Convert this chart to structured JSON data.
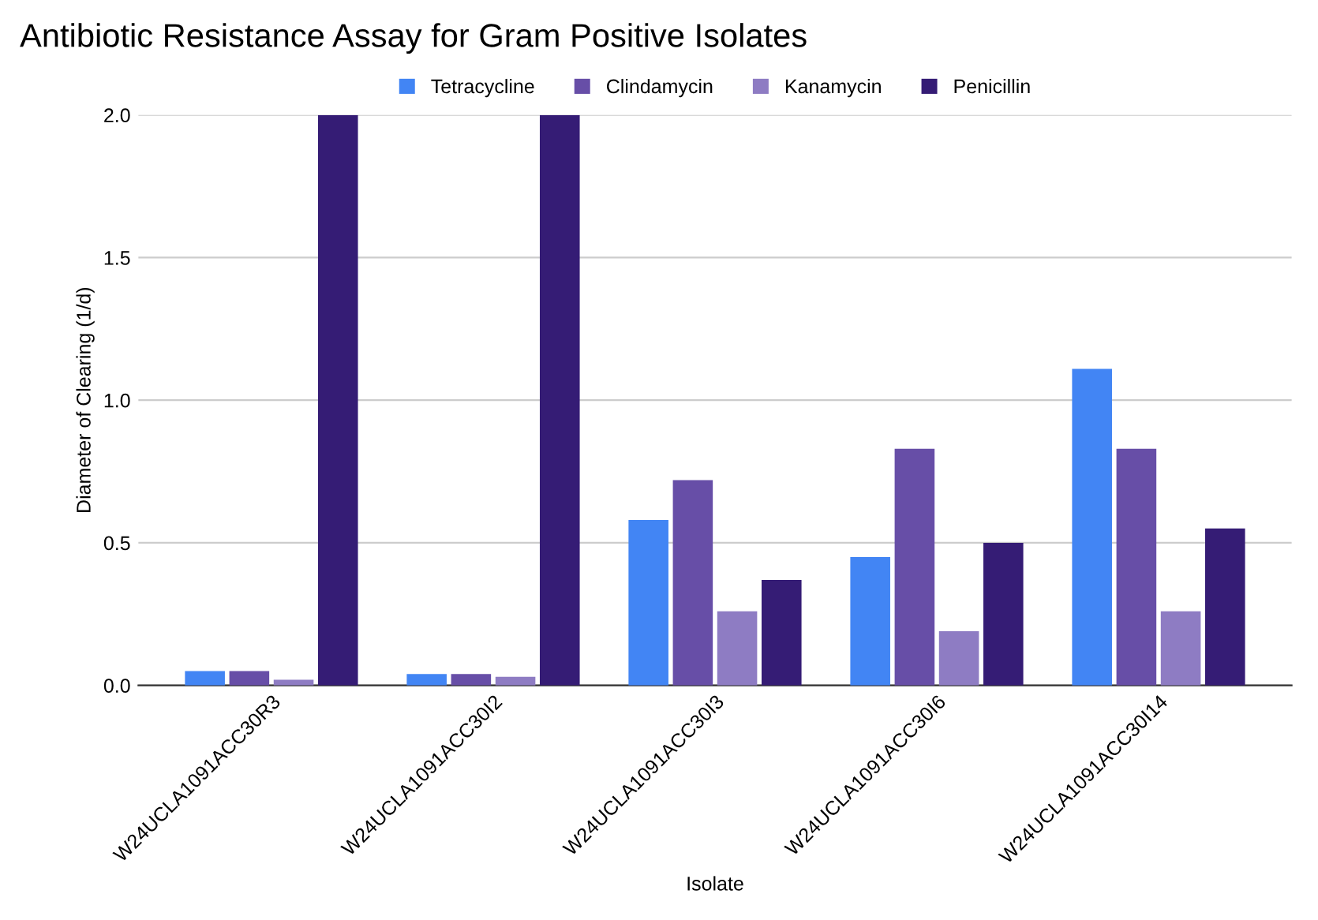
{
  "chart_data": {
    "type": "bar",
    "title": "Antibiotic Resistance Assay for Gram Positive Isolates",
    "xlabel": "Isolate",
    "ylabel": "Diameter of Clearing (1/d)",
    "categories": [
      "W24UCLA1091ACC30R3",
      "W24UCLA1091ACC30I2",
      "W24UCLA1091ACC30I3",
      "W24UCLA1091ACC30I6",
      "W24UCLA1091ACC30I14"
    ],
    "series": [
      {
        "name": "Tetracycline",
        "color": "#4285f4",
        "values": [
          0.05,
          0.04,
          0.58,
          0.45,
          1.11
        ]
      },
      {
        "name": "Clindamycin",
        "color": "#674ea7",
        "values": [
          0.05,
          0.04,
          0.72,
          0.83,
          0.83
        ]
      },
      {
        "name": "Kanamycin",
        "color": "#8e7cc3",
        "values": [
          0.02,
          0.03,
          0.26,
          0.19,
          0.26
        ]
      },
      {
        "name": "Penicillin",
        "color": "#351c75",
        "values": [
          2.0,
          2.0,
          0.37,
          0.5,
          0.55
        ]
      }
    ],
    "ylim": [
      0,
      2.0
    ],
    "yticks": [
      {
        "value": 0,
        "label": "0.0"
      },
      0.5,
      {
        "value": 1,
        "label": "1.0"
      },
      1.5,
      {
        "value": 2,
        "label": "2.0"
      }
    ],
    "grid": "y",
    "legend": "top"
  }
}
